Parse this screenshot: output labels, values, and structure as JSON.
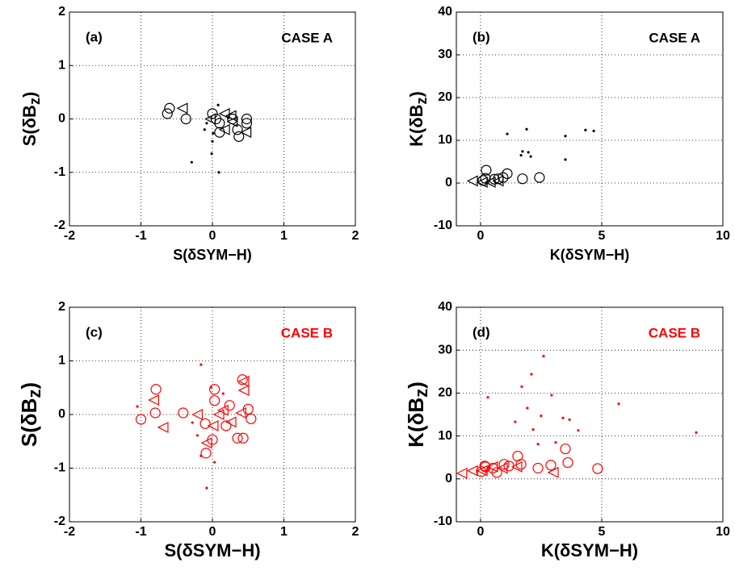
{
  "chart_data": [
    {
      "type": "scatter",
      "panel_label": "(a)",
      "annotation": "CASE A",
      "annotation_color": "#000000",
      "xlabel": "S(δSYM−H)",
      "ylabel": [
        "S(δB",
        "z",
        ")"
      ],
      "xlim": [
        -2,
        2
      ],
      "ylim": [
        -2,
        2
      ],
      "xticks": [
        -2,
        -1,
        0,
        1,
        2
      ],
      "yticks": [
        -2,
        -1,
        0,
        1,
        2
      ],
      "grid": true,
      "series": [
        {
          "marker": "circle",
          "color": "#000000",
          "x": [
            -0.6,
            -0.63,
            -0.37,
            0,
            0.1,
            0.1,
            0.28,
            0.35,
            0.48,
            0.37,
            0.48,
            0.05
          ],
          "y": [
            0.2,
            0.1,
            0,
            0.1,
            -0.08,
            -0.25,
            0,
            -0.2,
            0,
            -0.33,
            -0.08,
            0
          ]
        },
        {
          "marker": "triangle",
          "color": "#000000",
          "x": [
            -0.42,
            -0.03,
            0.17,
            0.28,
            0.47,
            0.17,
            0.26
          ],
          "y": [
            0.2,
            0,
            0.1,
            -0.05,
            -0.25,
            -0.2,
            0.06
          ]
        },
        {
          "marker": "dot",
          "color": "#000000",
          "x": [
            -0.29,
            0.09,
            -0.01,
            -0.08,
            0,
            0.01,
            -0.11,
            0.08
          ],
          "y": [
            -0.81,
            -1.0,
            -0.65,
            -0.08,
            -0.42,
            -0.27,
            -0.2,
            0.26
          ]
        }
      ]
    },
    {
      "type": "scatter",
      "panel_label": "(b)",
      "annotation": "CASE A",
      "annotation_color": "#000000",
      "xlabel": "K(δSYM−H)",
      "ylabel": [
        "K(δB",
        "z",
        ")"
      ],
      "xlim": [
        -1,
        10
      ],
      "ylim": [
        -10,
        40
      ],
      "xticks": [
        0,
        5,
        10
      ],
      "yticks": [
        -10,
        0,
        10,
        20,
        30,
        40
      ],
      "grid": true,
      "series": [
        {
          "marker": "circle",
          "color": "#000000",
          "x": [
            0.2,
            0.23,
            0.57,
            0.93,
            1.73,
            2.43,
            0.1,
            0.73,
            1.1
          ],
          "y": [
            1.1,
            3.0,
            0.9,
            1.3,
            1.0,
            1.3,
            0.6,
            1.0,
            2.2
          ]
        },
        {
          "marker": "triangle",
          "color": "#000000",
          "x": [
            -0.33,
            0.07,
            0.4,
            0.73
          ],
          "y": [
            0.5,
            0.2,
            0.2,
            0.5
          ]
        },
        {
          "marker": "dot",
          "color": "#000000",
          "x": [
            1.1,
            1.9,
            1.73,
            1.97,
            2.07,
            3.5,
            3.5,
            4.33,
            4.67,
            1.67
          ],
          "y": [
            11.5,
            12.6,
            7.4,
            7.2,
            6.2,
            11,
            5.5,
            12.4,
            12.2,
            6.5
          ]
        }
      ]
    },
    {
      "type": "scatter",
      "panel_label": "(c)",
      "annotation": "CASE B",
      "annotation_color": "#ff0000",
      "xlabel": "S(δSYM−H)",
      "ylabel": [
        "S(δB",
        "z",
        ")"
      ],
      "xlim": [
        -2,
        2
      ],
      "ylim": [
        -2,
        2
      ],
      "xticks": [
        -2,
        -1,
        0,
        1,
        2
      ],
      "yticks": [
        -2,
        -1,
        0,
        1,
        2
      ],
      "grid": true,
      "series": [
        {
          "marker": "circle",
          "color": "#ff0000",
          "x": [
            -0.8,
            -1.0,
            -0.79,
            -0.41,
            0.03,
            0.03,
            -0.1,
            0,
            -0.09,
            0.35,
            0.43,
            0.42,
            0.5,
            0.54,
            0.24,
            0.19
          ],
          "y": [
            0.03,
            -0.09,
            0.47,
            0.03,
            0.47,
            0.26,
            -0.17,
            -0.47,
            -0.72,
            -0.44,
            -0.44,
            0.65,
            0.1,
            -0.08,
            0.17,
            -0.21
          ]
        },
        {
          "marker": "triangle",
          "color": "#ff0000",
          "x": [
            -0.82,
            -0.69,
            -0.21,
            -0.08,
            0.01,
            0.15,
            0.4,
            0.44,
            0.44,
            0.26,
            0.09
          ],
          "y": [
            0.27,
            -0.24,
            0,
            -0.53,
            -0.21,
            0.08,
            0.03,
            0.45,
            0.62,
            -0.14,
            0
          ]
        },
        {
          "marker": "dot",
          "color": "#ff0000",
          "x": [
            -0.16,
            -0.08,
            0.03,
            -0.16,
            -1.05,
            -0.02,
            0.15,
            -0.21,
            -0.28
          ],
          "y": [
            0.93,
            -1.37,
            -0.89,
            -0.77,
            0.15,
            0.51,
            0.39,
            -0.39,
            -0.15
          ]
        }
      ]
    },
    {
      "type": "scatter",
      "panel_label": "(d)",
      "annotation": "CASE B",
      "annotation_color": "#ff0000",
      "xlabel": "K(δSYM−H)",
      "ylabel": [
        "K(δB",
        "z",
        ")"
      ],
      "xlim": [
        -1,
        10
      ],
      "ylim": [
        -10,
        40
      ],
      "xticks": [
        0,
        5,
        10
      ],
      "yticks": [
        -10,
        0,
        10,
        20,
        30,
        40
      ],
      "grid": true,
      "series": [
        {
          "marker": "circle",
          "color": "#ff0000",
          "x": [
            0.03,
            0.2,
            0.5,
            0.97,
            1.53,
            1.67,
            2.9,
            3.5,
            3.6,
            4.83,
            2.37,
            0.17,
            1.17,
            0.67
          ],
          "y": [
            1.7,
            2.8,
            2.5,
            3.4,
            5.3,
            3.4,
            3.2,
            7,
            3.8,
            2.4,
            2.5,
            3.0,
            3,
            1.5
          ]
        },
        {
          "marker": "triangle",
          "color": "#ff0000",
          "x": [
            -0.77,
            -0.33,
            0.07,
            0.5,
            0.9,
            1.5,
            3.0
          ],
          "y": [
            1.3,
            1.9,
            1.9,
            2.8,
            2.5,
            2.8,
            1.5
          ]
        },
        {
          "marker": "dot",
          "color": "#ff0000",
          "x": [
            0.3,
            2.6,
            2.1,
            1.7,
            2.93,
            1.43,
            1.93,
            2.17,
            2.5,
            3.4,
            3.67,
            4.03,
            8.9,
            5.7,
            2.37,
            3.1
          ],
          "y": [
            19,
            28.6,
            24.4,
            21.5,
            19.5,
            13.3,
            16.5,
            11.5,
            14.7,
            14.2,
            13.8,
            11.3,
            10.8,
            17.5,
            8.1,
            8.5
          ]
        }
      ]
    }
  ]
}
